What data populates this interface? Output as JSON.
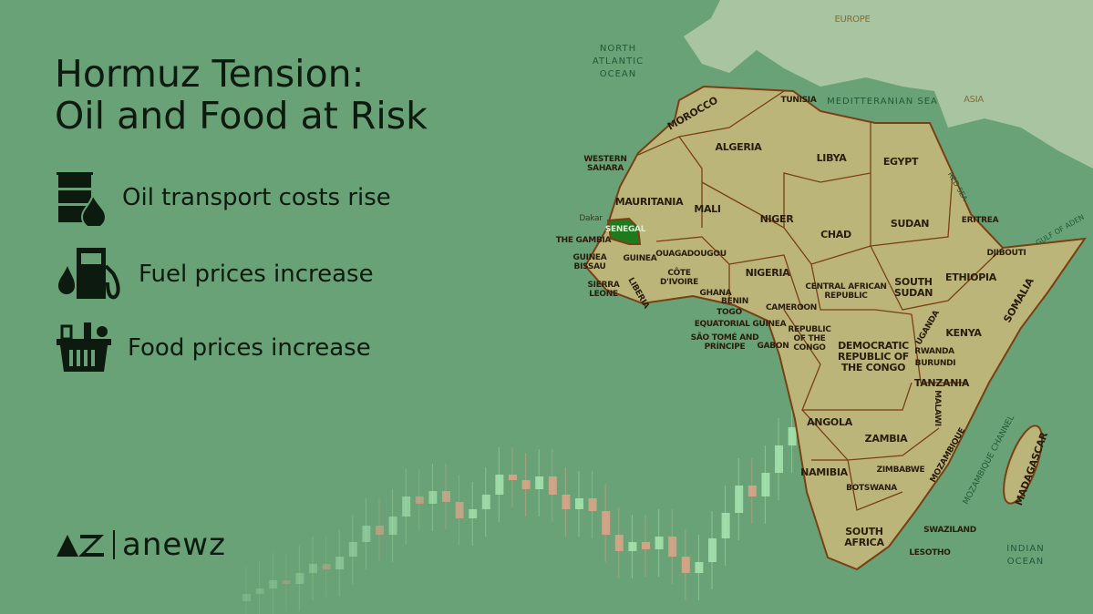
{
  "title": {
    "line1": "Hormuz Tension:",
    "line2": "Oil and Food at Risk"
  },
  "items": [
    {
      "icon": "oil-barrel-icon",
      "label": "Oil transport costs rise"
    },
    {
      "icon": "fuel-pump-icon",
      "label": "Fuel prices increase"
    },
    {
      "icon": "grocery-basket-icon",
      "label": "Food prices increase"
    }
  ],
  "brand": {
    "name": "anewz"
  },
  "colors": {
    "background": "#68a276",
    "land": "#bcb57a",
    "border": "#7a3f12",
    "highlight": "#1f7a1f",
    "europe_asia": "#a9c4a0",
    "candle_up": "#a8e6b0",
    "candle_down": "#e0a58a"
  },
  "map": {
    "highlighted_country": "SENEGAL",
    "seas": [
      "NORTH ATLANTIC OCEAN",
      "MEDITTERANIAN SEA",
      "RED SEA",
      "GULF OF ADEN",
      "MOZAMBIQUE CHANNEL",
      "INDIAN OCEAN"
    ],
    "continents": [
      "EUROPE",
      "ASIA"
    ],
    "labels": [
      "MOROCCO",
      "ALGERIA",
      "TUNISIA",
      "LIBYA",
      "EGYPT",
      "WESTERN SAHARA",
      "MAURITANIA",
      "MALI",
      "NIGER",
      "CHAD",
      "SUDAN",
      "ERITREA",
      "DJIBOUTI",
      "ETHIOPIA",
      "SOMALIA",
      "SOUTH SUDAN",
      "CENTRAL AFRICAN REPUBLIC",
      "Dakar",
      "SENEGAL",
      "THE GAMBIA",
      "GUINEA BISSAU",
      "GUINEA",
      "SIERRA LEONE",
      "LIBERIA",
      "CÔTE D'IVOIRE",
      "GHANA",
      "OUAGADOUGOU",
      "NIGERIA",
      "BENIN",
      "TOGO",
      "CAMEROON",
      "EQUATORIAL GUINEA",
      "SÃO TOMÉ AND PRÍNCIPE",
      "GABON",
      "REPUBLIC OF THE CONGO",
      "DEMOCRATIC REPUBLIC OF THE CONGO",
      "UGANDA",
      "KENYA",
      "RWANDA",
      "BURUNDI",
      "TANZANIA",
      "ANGOLA",
      "ZAMBIA",
      "MALAWI",
      "MOZAMBIQUE",
      "ZIMBABWE",
      "NAMIBIA",
      "BOTSWANA",
      "SOUTH AFRICA",
      "SWAZILAND",
      "LESOTHO",
      "MADAGASCAR"
    ]
  }
}
